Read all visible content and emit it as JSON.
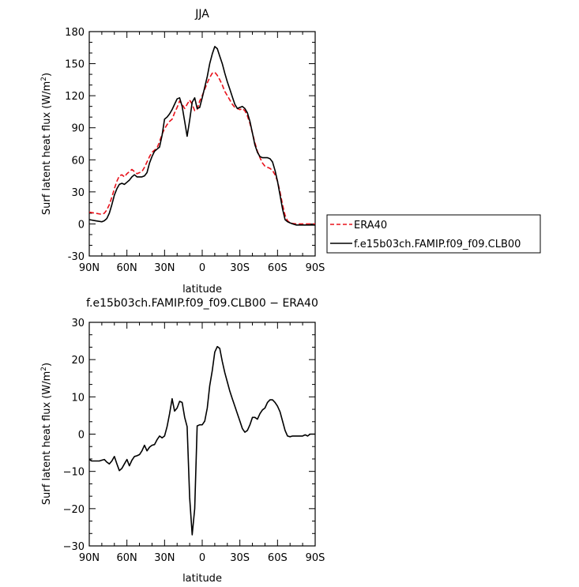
{
  "chart_data": [
    {
      "type": "line",
      "title": "JJA",
      "xlabel": "latitude",
      "ylabel": "Surf latent heat flux (W/m",
      "ylabel_sup": "2",
      "ylabel_end": ")",
      "xlim": [
        90,
        -90
      ],
      "ylim": [
        -30,
        180
      ],
      "xticks": [
        90,
        60,
        30,
        0,
        -30,
        -60,
        -90
      ],
      "xtick_labels": [
        "90N",
        "60N",
        "30N",
        "0",
        "30S",
        "60S",
        "90S"
      ],
      "yticks": [
        -30,
        0,
        30,
        60,
        90,
        120,
        150,
        180
      ],
      "ytick_labels": [
        "-30",
        "0",
        "30",
        "60",
        "90",
        "120",
        "150",
        "180"
      ],
      "legend": {
        "placement": "right",
        "entries": [
          "ERA40",
          "f.e15b03ch.FAMIP.f09_f09.CLB00"
        ]
      },
      "series": [
        {
          "name": "ERA40",
          "color": "#e8121b",
          "dash": true,
          "x": [
            90,
            85,
            80,
            78,
            76,
            74,
            72,
            70,
            68,
            66,
            64,
            62,
            60,
            58,
            56,
            54,
            52,
            50,
            48,
            46,
            44,
            42,
            40,
            38,
            36,
            34,
            32,
            30,
            28,
            26,
            24,
            22,
            20,
            18,
            16,
            14,
            12,
            10,
            8,
            6,
            4,
            2,
            0,
            -2,
            -4,
            -6,
            -8,
            -10,
            -12,
            -14,
            -16,
            -18,
            -20,
            -22,
            -24,
            -26,
            -28,
            -30,
            -32,
            -34,
            -36,
            -38,
            -40,
            -42,
            -44,
            -46,
            -48,
            -50,
            -52,
            -54,
            -56,
            -58,
            -60,
            -62,
            -64,
            -66,
            -68,
            -70,
            -72,
            -75,
            -80,
            -85,
            -90
          ],
          "y": [
            11,
            10,
            9,
            10,
            13,
            18,
            25,
            33,
            40,
            45,
            46,
            44,
            47,
            49,
            51,
            49,
            47,
            48,
            49,
            53,
            58,
            63,
            67,
            69,
            71,
            77,
            84,
            89,
            93,
            96,
            98,
            104,
            109,
            115,
            112,
            108,
            112,
            116,
            112,
            106,
            107,
            115,
            120,
            126,
            132,
            137,
            141,
            142,
            139,
            135,
            130,
            124,
            120,
            116,
            112,
            109,
            108,
            107,
            108,
            106,
            101,
            94,
            85,
            76,
            68,
            62,
            57,
            54,
            53,
            52,
            50,
            46,
            40,
            30,
            18,
            8,
            3,
            1,
            0.5,
            0,
            0,
            0,
            0
          ]
        },
        {
          "name": "f.e15b03ch.FAMIP.f09_f09.CLB00",
          "color": "#000000",
          "dash": false,
          "x": [
            90,
            85,
            80,
            78,
            76,
            74,
            72,
            70,
            68,
            66,
            64,
            62,
            60,
            58,
            56,
            54,
            52,
            50,
            48,
            46,
            44,
            42,
            40,
            38,
            36,
            34,
            32,
            30,
            28,
            26,
            24,
            22,
            20,
            18,
            16,
            14,
            12,
            10,
            8,
            6,
            4,
            2,
            0,
            -2,
            -4,
            -6,
            -8,
            -10,
            -12,
            -14,
            -16,
            -18,
            -20,
            -22,
            -24,
            -26,
            -28,
            -30,
            -32,
            -34,
            -36,
            -38,
            -40,
            -42,
            -44,
            -46,
            -48,
            -50,
            -52,
            -54,
            -56,
            -58,
            -60,
            -62,
            -64,
            -66,
            -68,
            -70,
            -72,
            -75,
            -80,
            -85,
            -90
          ],
          "y": [
            4,
            3,
            2,
            3,
            5,
            10,
            18,
            27,
            33,
            37,
            38,
            37,
            39,
            41,
            44,
            46,
            44,
            44,
            44,
            45,
            48,
            57,
            63,
            68,
            70,
            72,
            83,
            98,
            100,
            103,
            107,
            112,
            117,
            118,
            110,
            96,
            82,
            97,
            114,
            118,
            108,
            109,
            118,
            128,
            138,
            150,
            159,
            166,
            164,
            157,
            150,
            141,
            133,
            126,
            119,
            112,
            108,
            109,
            110,
            108,
            104,
            96,
            85,
            74,
            67,
            63,
            62,
            62,
            62,
            61,
            58,
            50,
            40,
            27,
            14,
            4,
            2,
            1,
            0,
            -1,
            -1,
            -1,
            -1
          ]
        }
      ]
    },
    {
      "type": "line",
      "title": "f.e15b03ch.FAMIP.f09_f09.CLB00 − ERA40",
      "xlabel": "latitude",
      "ylabel": "Surf latent heat flux (W/m",
      "ylabel_sup": "2",
      "ylabel_end": ")",
      "xlim": [
        90,
        -90
      ],
      "ylim": [
        -30,
        30
      ],
      "xticks": [
        90,
        60,
        30,
        0,
        -30,
        -60,
        -90
      ],
      "xtick_labels": [
        "90N",
        "60N",
        "30N",
        "0",
        "30S",
        "60S",
        "90S"
      ],
      "yticks": [
        -30,
        -20,
        -10,
        0,
        10,
        20,
        30
      ],
      "ytick_labels": [
        "−30",
        "−20",
        "−10",
        "0",
        "10",
        "20",
        "30"
      ],
      "series": [
        {
          "color": "#000000",
          "dash": false,
          "x": [
            90,
            88,
            85,
            82,
            80,
            78,
            76,
            74,
            72,
            70,
            68,
            66,
            64,
            62,
            60,
            58,
            56,
            54,
            52,
            50,
            48,
            46,
            44,
            42,
            40,
            38,
            36,
            34,
            32,
            30,
            28,
            26,
            24,
            22,
            20,
            18,
            16,
            14,
            12,
            10,
            8,
            6,
            4,
            2,
            0,
            -2,
            -4,
            -6,
            -8,
            -10,
            -12,
            -14,
            -16,
            -18,
            -20,
            -22,
            -24,
            -26,
            -28,
            -30,
            -32,
            -34,
            -36,
            -38,
            -40,
            -42,
            -44,
            -46,
            -48,
            -50,
            -52,
            -54,
            -56,
            -58,
            -60,
            -62,
            -64,
            -66,
            -68,
            -70,
            -72,
            -75,
            -78,
            -80,
            -82,
            -84,
            -86,
            -88,
            -90
          ],
          "y": [
            -6.8,
            -7.2,
            -7.2,
            -7.2,
            -7,
            -6.8,
            -7.5,
            -8,
            -7.2,
            -6,
            -8,
            -9.8,
            -9.2,
            -8,
            -6.8,
            -8.5,
            -7,
            -6,
            -5.8,
            -5.5,
            -4.5,
            -3,
            -4.5,
            -3.5,
            -3,
            -2.8,
            -1.5,
            -0.5,
            -1,
            -0.5,
            2,
            5.5,
            9.5,
            6.2,
            7,
            8.8,
            8.5,
            4.5,
            2,
            -17,
            -27,
            -20,
            2.2,
            2.5,
            2.5,
            3.5,
            7,
            13,
            17,
            22,
            23.5,
            23,
            19.5,
            16.5,
            14,
            11.5,
            9.5,
            7.5,
            5.5,
            3.5,
            1.5,
            0.5,
            1,
            2.5,
            4.5,
            4.5,
            4,
            5.5,
            6.5,
            7,
            8.5,
            9.2,
            9.2,
            8.5,
            7.5,
            6,
            3.5,
            1,
            -0.5,
            -0.7,
            -0.5,
            -0.5,
            -0.5,
            -0.5,
            -0.2,
            -0.5,
            0,
            0,
            0
          ]
        }
      ]
    }
  ]
}
